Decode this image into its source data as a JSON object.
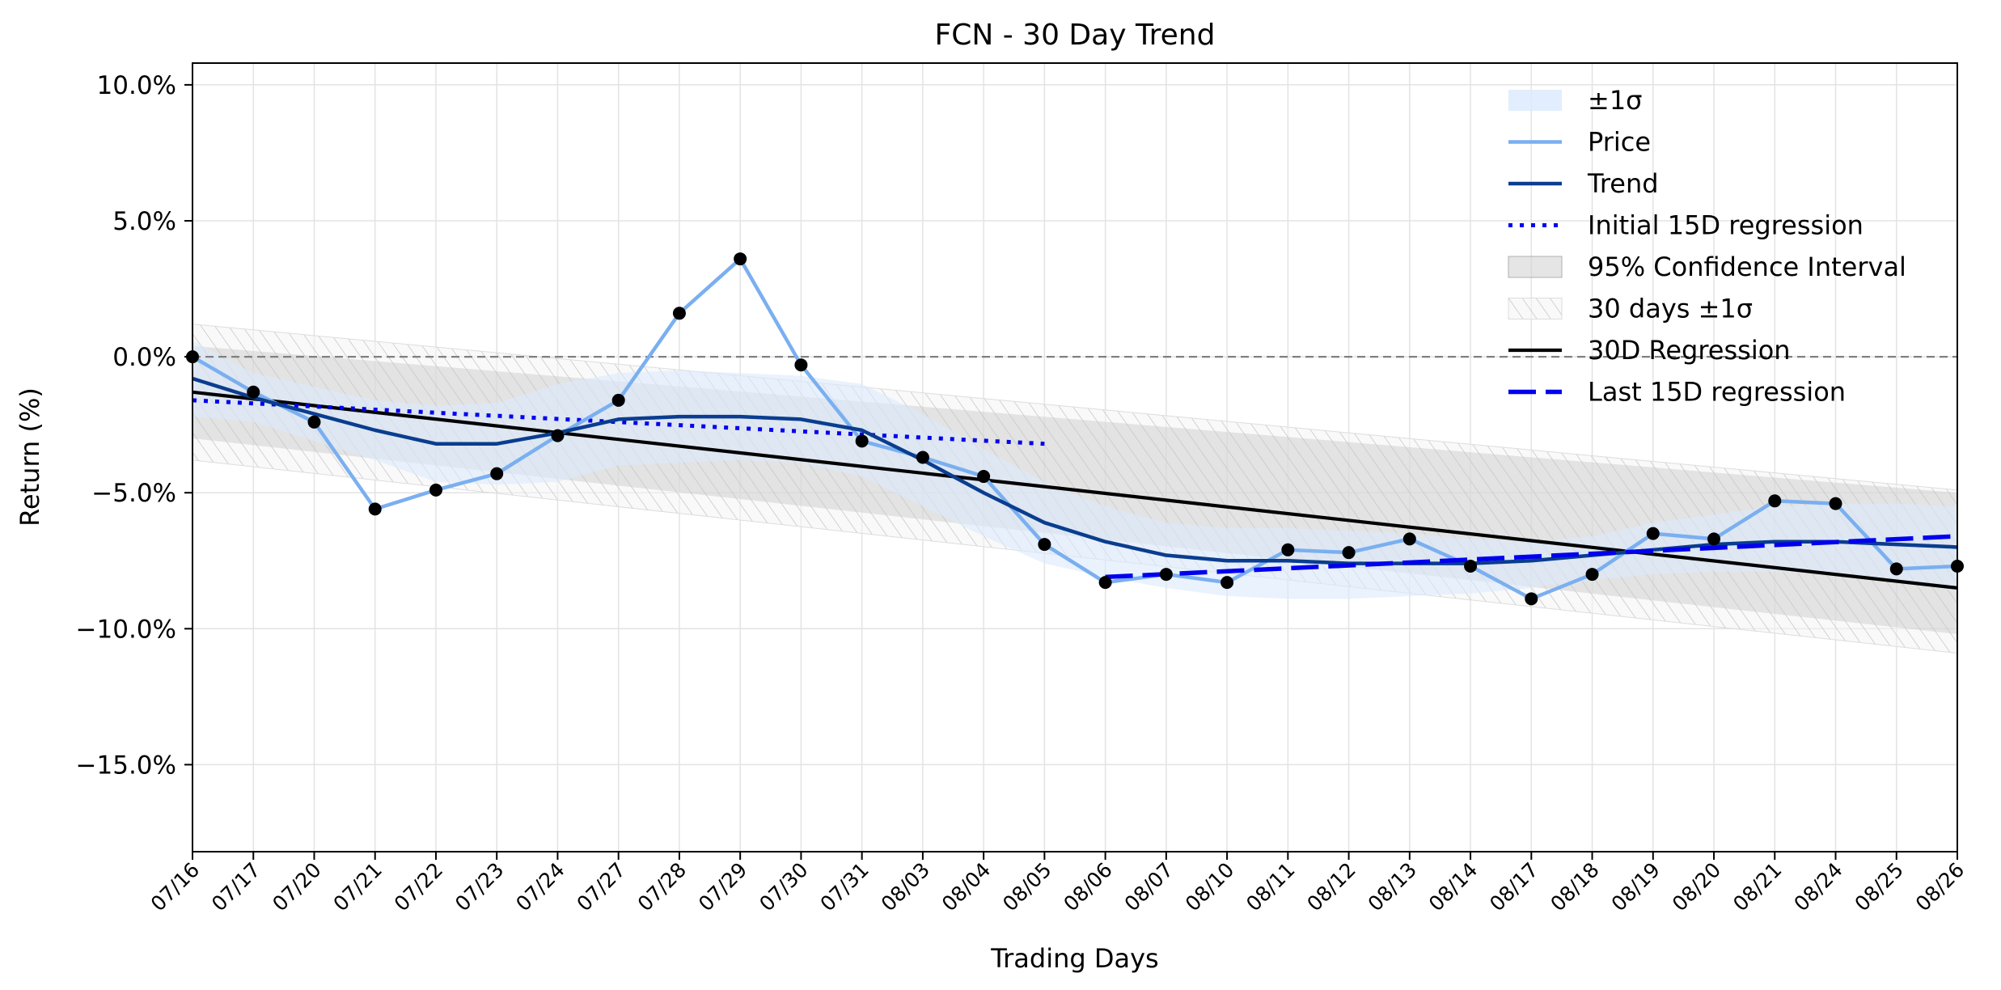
{
  "chart_data": {
    "type": "line",
    "title": "FCN - 30 Day Trend",
    "xlabel": "Trading Days",
    "ylabel": "Return (%)",
    "categories": [
      "07/16",
      "07/17",
      "07/20",
      "07/21",
      "07/22",
      "07/23",
      "07/24",
      "07/27",
      "07/28",
      "07/29",
      "07/30",
      "07/31",
      "08/03",
      "08/04",
      "08/05",
      "08/06",
      "08/07",
      "08/10",
      "08/11",
      "08/12",
      "08/13",
      "08/14",
      "08/17",
      "08/18",
      "08/19",
      "08/20",
      "08/21",
      "08/24",
      "08/25",
      "08/26"
    ],
    "ylim": [
      -18.2,
      10.8
    ],
    "yticks": [
      10,
      5,
      0,
      -5,
      -10,
      -15
    ],
    "ytick_labels": [
      "10.0%",
      "5.0%",
      "0.0%",
      "−5.0%",
      "−10.0%",
      "−15.0%"
    ],
    "grid": true,
    "zero_line": 0,
    "legend_position": "top-right",
    "legend": [
      "±1σ",
      "Price",
      "Trend",
      "Initial 15D regression",
      "95% Confidence Interval",
      "30 days ±1σ",
      "30D Regression",
      "Last 15D regression"
    ],
    "series": [
      {
        "name": "Price",
        "type": "line+markers",
        "color": "#7aaff0",
        "values": [
          0.0,
          -1.3,
          -2.4,
          -5.6,
          -4.9,
          -4.3,
          -2.9,
          -1.6,
          1.6,
          3.6,
          -0.3,
          -3.1,
          -3.7,
          -4.4,
          -6.9,
          -8.3,
          -8.0,
          -8.3,
          -7.1,
          -7.2,
          -6.7,
          -7.7,
          -8.9,
          -8.0,
          -6.5,
          -6.7,
          -5.3,
          -5.4,
          -7.8,
          -7.7
        ]
      },
      {
        "name": "Trend",
        "type": "line",
        "color": "#0a3d8f",
        "values": [
          -0.8,
          -1.5,
          -2.1,
          -2.7,
          -3.2,
          -3.2,
          -2.8,
          -2.3,
          -2.2,
          -2.2,
          -2.3,
          -2.7,
          -3.8,
          -5.0,
          -6.1,
          -6.8,
          -7.3,
          -7.5,
          -7.5,
          -7.6,
          -7.6,
          -7.6,
          -7.5,
          -7.3,
          -7.1,
          -6.9,
          -6.8,
          -6.8,
          -6.9,
          -7.0
        ]
      },
      {
        "name": "Initial 15D regression",
        "type": "dotted",
        "color": "#0000ee",
        "x_range": [
          0,
          14
        ],
        "y_range": [
          -1.6,
          -3.2
        ]
      },
      {
        "name": "30D Regression",
        "type": "line",
        "color": "#000000",
        "x_range": [
          0,
          29
        ],
        "y_range": [
          -1.3,
          -8.5
        ]
      },
      {
        "name": "Last 15D regression",
        "type": "dashed",
        "color": "#0000ee",
        "x_range": [
          15,
          29
        ],
        "y_range": [
          -8.1,
          -6.6
        ]
      }
    ],
    "bands": [
      {
        "name": "±1σ",
        "color": "#dbeafc",
        "upper": [
          0.6,
          -0.6,
          -1.1,
          -1.6,
          -1.8,
          -1.7,
          -1.0,
          -0.6,
          -0.5,
          -0.6,
          -0.7,
          -1.0,
          -2.1,
          -3.4,
          -4.6,
          -5.5,
          -6.1,
          -6.3,
          -6.3,
          -6.4,
          -6.5,
          -6.7,
          -6.8,
          -6.6,
          -6.1,
          -5.8,
          -5.5,
          -5.4,
          -5.4,
          -5.5
        ],
        "lower": [
          -2.2,
          -2.4,
          -3.1,
          -3.8,
          -4.6,
          -4.7,
          -4.6,
          -4.0,
          -3.9,
          -3.8,
          -3.9,
          -4.4,
          -5.5,
          -6.6,
          -7.6,
          -8.1,
          -8.5,
          -8.8,
          -8.9,
          -8.9,
          -8.8,
          -8.7,
          -8.5,
          -8.2,
          -8.0,
          -7.9,
          -7.9,
          -8.0,
          -8.3,
          -8.6
        ]
      },
      {
        "name": "95% Confidence Interval",
        "color": "#c8c8c8",
        "upper_range": [
          0.4,
          -5.0
        ],
        "lower_range": [
          -3.0,
          -10.2
        ]
      },
      {
        "name": "30 days ±1σ",
        "color": "#d0d0d0",
        "hatch": true,
        "upper_range": [
          1.2,
          -4.9
        ],
        "lower_range": [
          -3.8,
          -10.9
        ]
      }
    ]
  }
}
